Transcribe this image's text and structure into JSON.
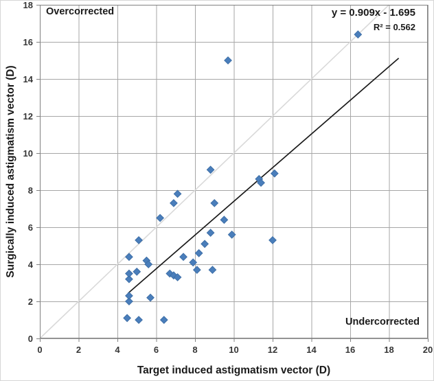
{
  "figure": {
    "overlay_top_left": "Overcorrected",
    "overlay_bottom_right": "Undercorrected",
    "equation_label": "y = 0.909x - 1.695",
    "r_squared_label": "R² = 0.562",
    "xlabel": "Target induced astigmatism vector (D)",
    "ylabel": "Surgically induced astigmatism vector (D)"
  },
  "colors": {
    "marker_fill": "#4a7ebb",
    "marker_stroke": "#3e6fa7",
    "gridline": "#a6a6a6",
    "axis_frame": "#808080",
    "identity_line": "#d9d9d9",
    "trend_line": "#1a1a1a",
    "tick_text": "#363636",
    "annotation_text": "#1a1a1a"
  },
  "chart_data": {
    "type": "scatter",
    "title": "",
    "xlabel": "Target induced astigmatism vector (D)",
    "ylabel": "Surgically induced astigmatism vector (D)",
    "xlim": [
      0,
      20
    ],
    "ylim": [
      0,
      18
    ],
    "x_ticks": [
      0,
      2,
      4,
      6,
      8,
      10,
      12,
      14,
      16,
      18,
      20
    ],
    "y_ticks": [
      0,
      2,
      4,
      6,
      8,
      10,
      12,
      14,
      16,
      18
    ],
    "grid": true,
    "legend": "none",
    "marker": "diamond",
    "points": [
      [
        4.5,
        1.1
      ],
      [
        5.1,
        1.0
      ],
      [
        6.4,
        1.0
      ],
      [
        4.6,
        2.0
      ],
      [
        4.6,
        2.3
      ],
      [
        5.7,
        2.2
      ],
      [
        4.6,
        3.2
      ],
      [
        4.6,
        3.5
      ],
      [
        5.0,
        3.6
      ],
      [
        4.6,
        4.4
      ],
      [
        5.5,
        4.2
      ],
      [
        5.6,
        4.0
      ],
      [
        5.1,
        5.3
      ],
      [
        6.2,
        6.5
      ],
      [
        6.9,
        7.3
      ],
      [
        7.1,
        7.8
      ],
      [
        6.7,
        3.5
      ],
      [
        6.9,
        3.4
      ],
      [
        7.1,
        3.3
      ],
      [
        7.4,
        4.4
      ],
      [
        7.9,
        4.1
      ],
      [
        8.1,
        3.7
      ],
      [
        8.2,
        4.6
      ],
      [
        8.5,
        5.1
      ],
      [
        8.8,
        5.7
      ],
      [
        8.9,
        3.7
      ],
      [
        8.8,
        9.1
      ],
      [
        9.0,
        7.3
      ],
      [
        9.5,
        6.4
      ],
      [
        9.9,
        5.6
      ],
      [
        9.7,
        15.0
      ],
      [
        11.3,
        8.6
      ],
      [
        11.4,
        8.4
      ],
      [
        12.1,
        8.9
      ],
      [
        12.0,
        5.3
      ],
      [
        16.4,
        16.4
      ]
    ],
    "trendline": {
      "slope": 0.909,
      "intercept": -1.695,
      "x_start": 4.55,
      "x_end": 18.5,
      "equation": "y = 0.909x - 1.695",
      "r2": 0.562
    },
    "identity_line": {
      "from": [
        0,
        0
      ],
      "to": [
        18,
        18
      ]
    },
    "annotations": [
      {
        "text": "Overcorrected",
        "position": "top-left"
      },
      {
        "text": "Undercorrected",
        "position": "bottom-right"
      }
    ]
  }
}
